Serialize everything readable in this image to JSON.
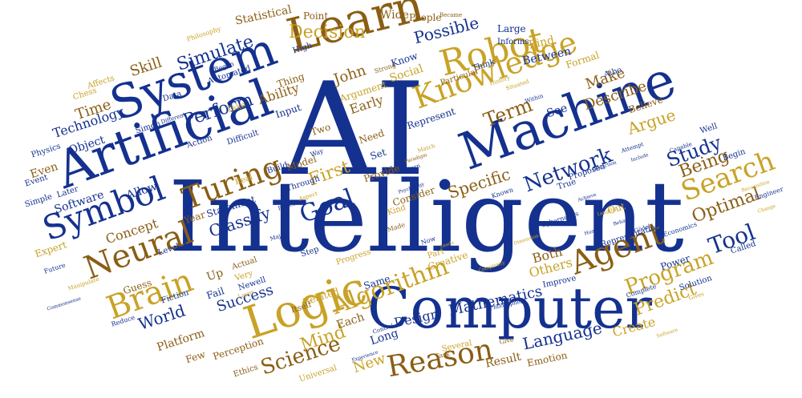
{
  "cloud": {
    "colors": {
      "blue": "#1a3aa8",
      "navy": "#14318f",
      "gold": "#c9a227",
      "brown": "#8a5e14"
    },
    "words": {
      "ai": "AI",
      "intelligent": "Intelligent",
      "computer": "Computer",
      "artificial": "Artificial",
      "machine": "Machine",
      "system": "System",
      "learn": "Learn",
      "logic": "Logic",
      "robot": "Robot",
      "knowledge": "Knowledge",
      "symbol": "Symbol",
      "neural": "Neural",
      "brain": "Brain",
      "turing": "Turing",
      "agent": "Agent",
      "search": "Search",
      "reason": "Reason",
      "algorithm": "Algorithm",
      "network": "Network",
      "goal": "Goal",
      "science": "Science",
      "decision": "Decision",
      "simulate": "Simulate",
      "possible": "Possible",
      "program": "Program",
      "language": "Language",
      "mathematics": "Mathematics",
      "study": "Study",
      "being": "Being",
      "optimal": "Optimal",
      "tool": "Tool",
      "predict": "Predict",
      "mind": "Mind",
      "first": "First",
      "specific": "Specific",
      "term": "Term",
      "describe": "Describe",
      "make": "Make",
      "argue": "Argue",
      "perform": "Perform",
      "classify": "Classify",
      "world": "World",
      "skill": "Skill",
      "time": "Time",
      "technology": "Technology",
      "object": "Object",
      "john": "John",
      "success": "Success",
      "design": "Design",
      "new": "New",
      "concept": "Concept",
      "software": "Software",
      "allow": "Allow",
      "platform": "Platform",
      "both": "Both",
      "others": "Others",
      "create": "Create",
      "statistical": "Statistical",
      "find": "Find",
      "between": "Between",
      "long": "Long",
      "each": "Each",
      "early": "Early",
      "ability": "Ability",
      "social": "Social",
      "argument": "Argument",
      "wide": "Wide",
      "point": "Point",
      "people": "People",
      "large": "Large",
      "informs": "Informs",
      "know": "Know",
      "thing": "Thing",
      "input": "Input",
      "two": "Two",
      "need": "Need",
      "see": "See",
      "represent": "Represent",
      "set": "Set",
      "model": "Model",
      "provide": "Provide",
      "consider": "Consider",
      "related": "Related",
      "itself": "Itself",
      "same": "Same",
      "creative": "Creative",
      "part": "Part",
      "fail": "Fail",
      "up": "Up",
      "actual": "Actual",
      "very": "Very",
      "newell": "Newell",
      "guess": "Guess",
      "fiction": "Fiction",
      "perception": "Perception",
      "ethics": "Ethics",
      "few": "Few",
      "statement": "Statement",
      "year": "Year",
      "level": "Level",
      "expert": "Expert",
      "future": "Future",
      "simple": "Simple",
      "event": "Event",
      "even": "Even",
      "later": "Later",
      "physics": "Physics",
      "chess": "Chess",
      "affects": "Affects",
      "data": "Data",
      "simon": "Simon",
      "action": "Action",
      "difficult": "Difficult",
      "automated": "Automated",
      "strong": "Strong",
      "high": "High",
      "began": "Began",
      "take": "Take",
      "real": "Real",
      "build": "Build",
      "through": "Through",
      "step": "Step",
      "progress": "Progress",
      "result": "Result",
      "emotion": "Emotion",
      "universal": "Universal",
      "several": "Several",
      "task": "Task",
      "give": "Give",
      "improve": "Improve",
      "cybernetics": "Cybernetics",
      "representation": "Representation",
      "economics": "Economics",
      "power": "Power",
      "solution": "Solution",
      "complete": "Complete",
      "called": "Called",
      "engineer": "Engineer",
      "begin": "Begin",
      "well": "Well",
      "believe": "Believe",
      "formal": "Formal",
      "aibo": "Aibo",
      "proposed": "Proposed",
      "true": "True",
      "known": "Known",
      "out": "Out",
      "made": "Made",
      "kind": "Kind",
      "way": "Way",
      "particular": "Particular",
      "think": "Think",
      "philosophy": "Philosophy",
      "became": "Became",
      "major": "Major",
      "different": "Different",
      "now": "Now",
      "within": "Within",
      "attempt": "Attempt",
      "capable": "Capable",
      "history": "History",
      "situated": "Situated",
      "lead": "Lead",
      "philosophers": "Philosophers",
      "gives": "Gives",
      "reduce": "Reduce",
      "control": "Control",
      "aspect": "Aspect",
      "project": "Project",
      "layer": "Layer",
      "pattern": "Pattern",
      "match": "Match",
      "manipulate": "Manipulate",
      "commonsense": "Commonsense",
      "psychology": "Psychology",
      "paradigm": "Paradigm",
      "deduction": "Deduction",
      "achieve": "Achieve",
      "include": "Include",
      "recognition": "Recognition",
      "change": "Change",
      "godel": "Gödel",
      "behavior": "Behavior",
      "human": "Human",
      "lengthy": "Lengthy",
      "experience": "Experience",
      "complexity": "Complexity",
      "leads": "Leads",
      "software2": "Software",
      "dimension": "Dimension"
    }
  }
}
